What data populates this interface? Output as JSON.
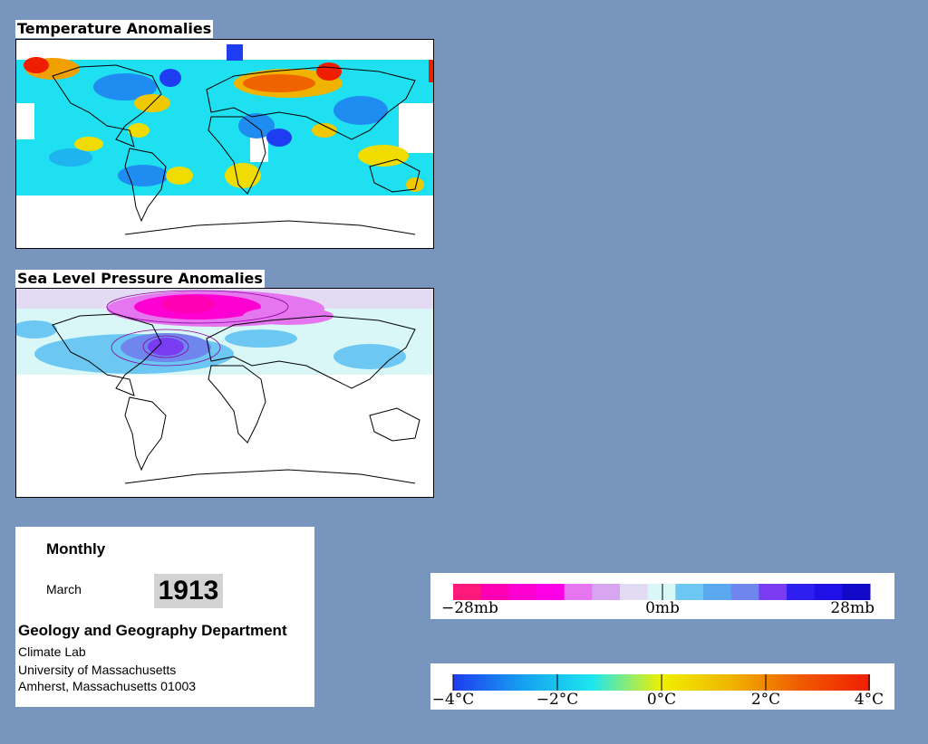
{
  "maps": {
    "temperature_title": "Temperature Anomalies",
    "pressure_title": "Sea Level Pressure Anomalies"
  },
  "info": {
    "frequency": "Monthly",
    "month": "March",
    "year": "1913",
    "department": "Geology and Geography Department",
    "lab": "Climate Lab",
    "university": "University of Massachusetts",
    "address": "Amherst, Massachusetts 01003"
  },
  "pressure_legend": {
    "tick_labels": [
      "−28mb",
      "0mb",
      "28mb"
    ],
    "colors": [
      "#ff1a7a",
      "#ff00b4",
      "#ff00d2",
      "#ff00e6",
      "#e676f0",
      "#d8a6f0",
      "#e3dbf4",
      "#d9f7f7",
      "#6cc8f2",
      "#5aa8f0",
      "#6f86ee",
      "#7a3cf0",
      "#2e1ef0",
      "#1e10e6",
      "#1208c8"
    ]
  },
  "temperature_legend": {
    "tick_labels": [
      "−4°C",
      "−2°C",
      "0°C",
      "2°C",
      "4°C"
    ],
    "gradient": [
      "#1e3cf0",
      "#16a0f0",
      "#1ee6f0",
      "#f0f000",
      "#f0b400",
      "#f05a00",
      "#f01e00"
    ]
  }
}
